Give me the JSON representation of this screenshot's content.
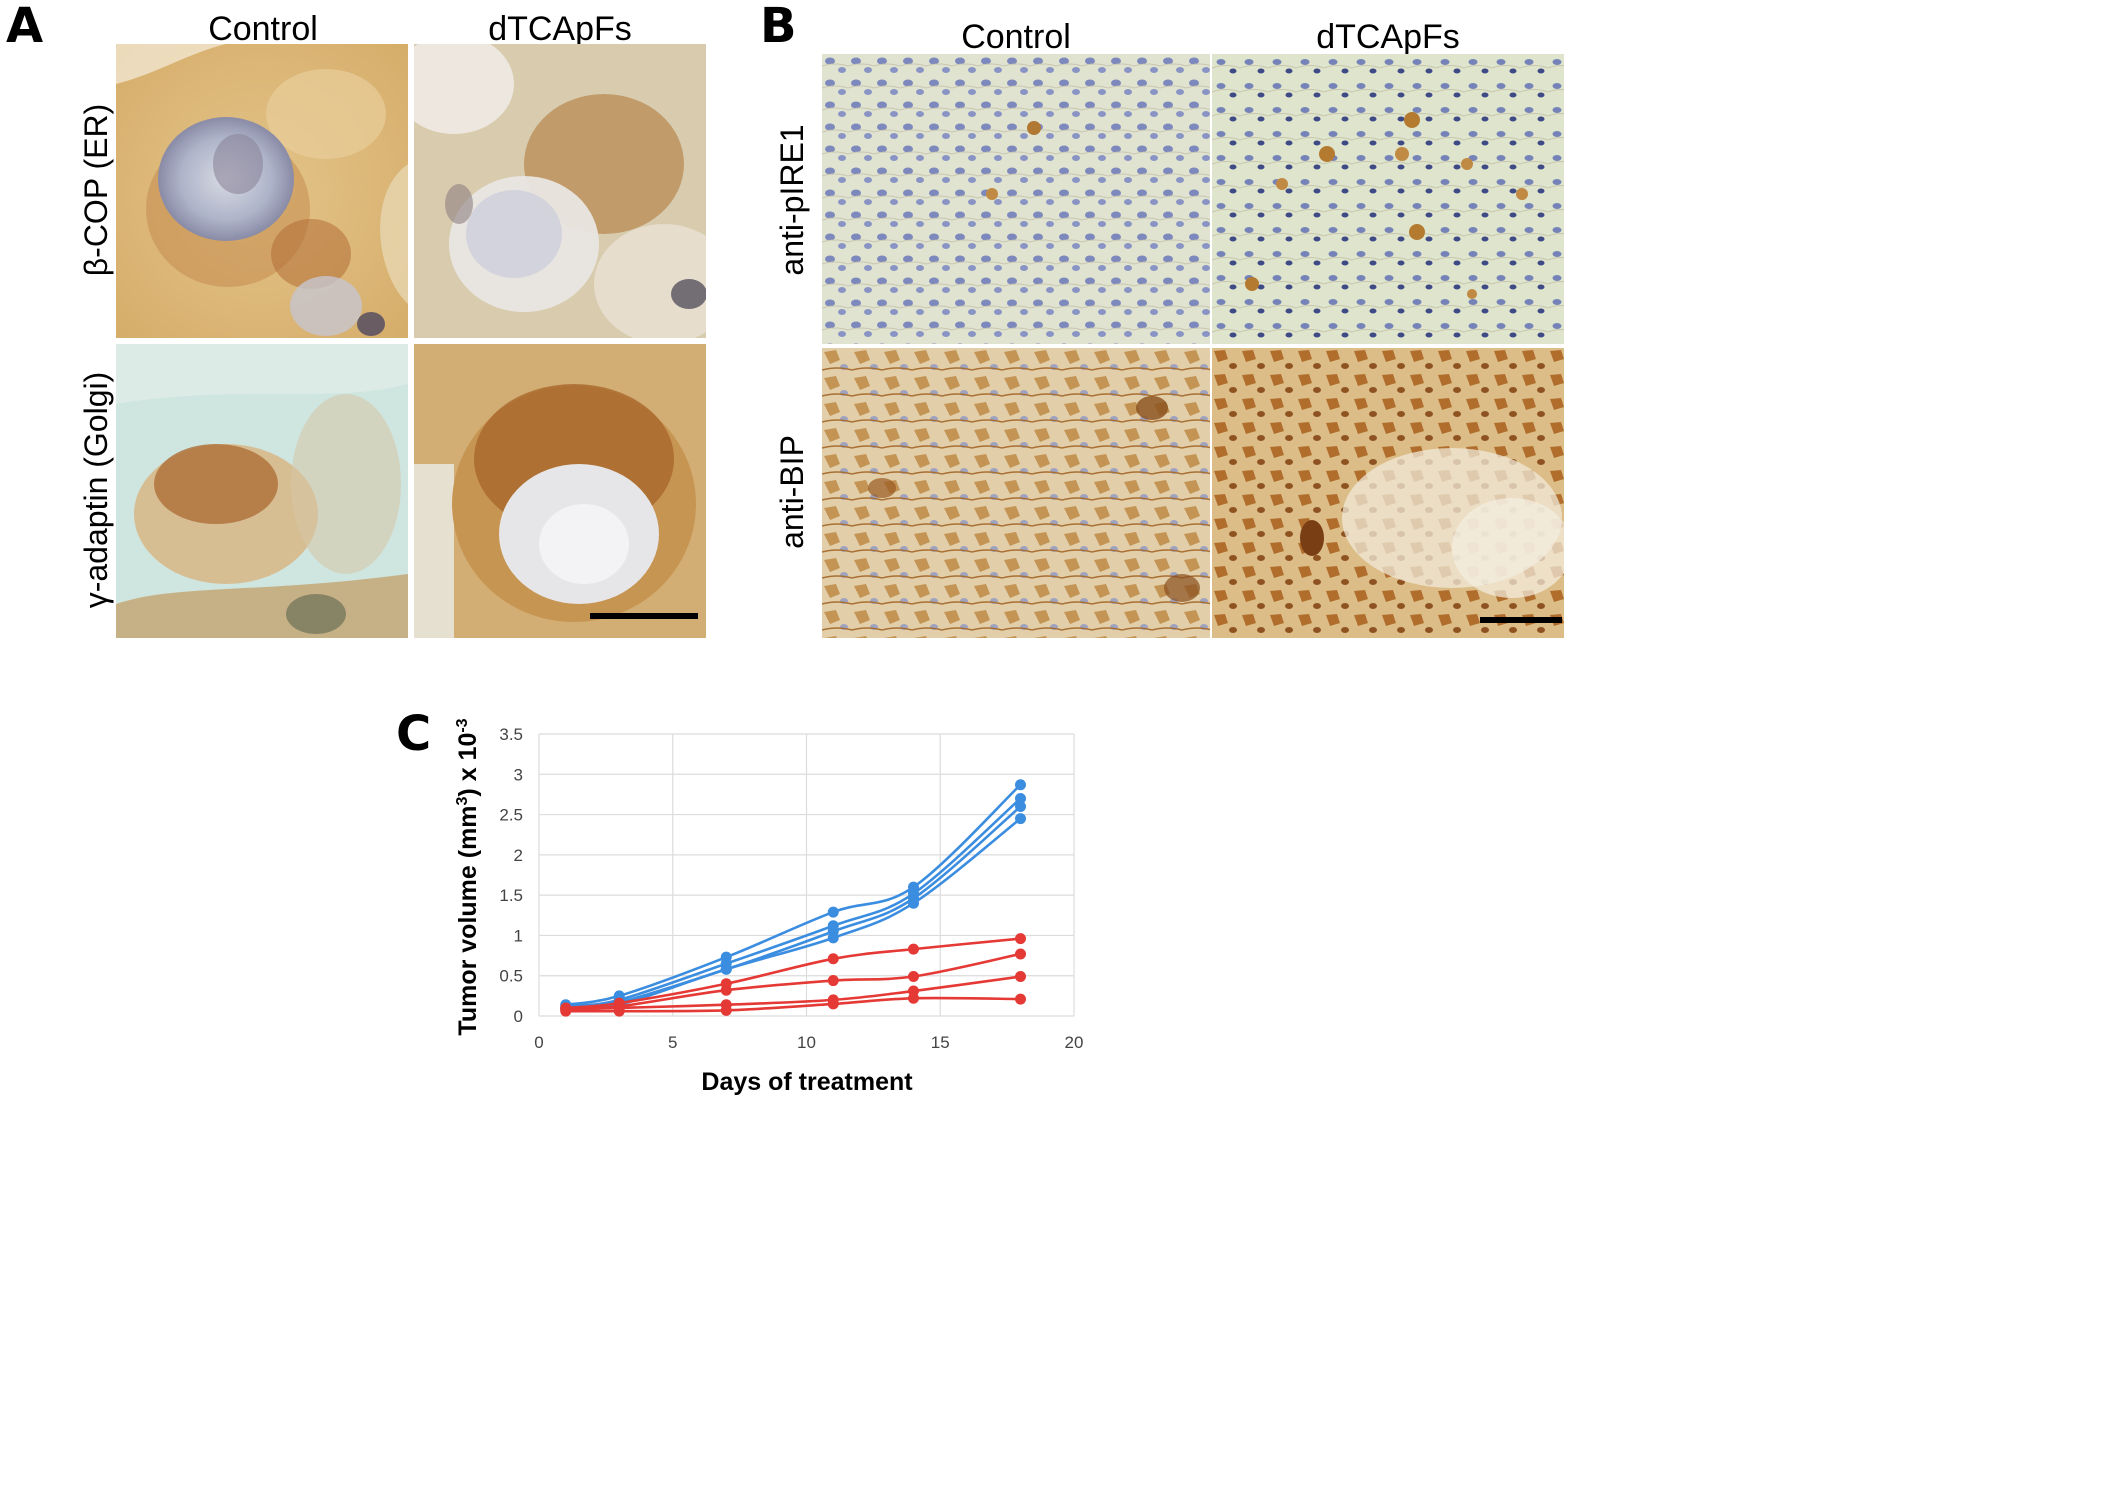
{
  "panelA": {
    "letter": "A",
    "columns": [
      "Control",
      "dTCApFs"
    ],
    "rows": [
      "β-COP (ER)",
      "γ-adaptin (Golgi)"
    ]
  },
  "panelB": {
    "letter": "B",
    "columns": [
      "Control",
      "dTCApFs"
    ],
    "rows": [
      "anti-pIRE1",
      "anti-BIP"
    ]
  },
  "panelC": {
    "letter": "C"
  },
  "colors": {
    "dTCApFs_series": "#e53935",
    "control_series": "#3b8de0",
    "grid": "#dcdcdc",
    "axis_text": "#444444"
  },
  "chart_data": {
    "type": "line",
    "xlabel": "Days of treatment",
    "ylabel_main": "Tumor volume (mm",
    "ylabel_sup1": "3",
    "ylabel_mid": ") x 10",
    "ylabel_sup2": "-3",
    "xlim": [
      0,
      20
    ],
    "ylim": [
      0,
      3.5
    ],
    "xticks": [
      0,
      5,
      10,
      15,
      20
    ],
    "yticks": [
      0,
      0.5,
      1,
      1.5,
      2,
      2.5,
      3,
      3.5
    ],
    "grid": true,
    "x": [
      1,
      3,
      7,
      11,
      14,
      18
    ],
    "series": [
      {
        "group": "blue",
        "values": [
          0.14,
          0.25,
          0.73,
          1.29,
          1.6,
          2.87
        ]
      },
      {
        "group": "blue",
        "values": [
          0.12,
          0.2,
          0.65,
          1.12,
          1.52,
          2.7
        ]
      },
      {
        "group": "blue",
        "values": [
          0.1,
          0.17,
          0.58,
          1.05,
          1.46,
          2.6
        ]
      },
      {
        "group": "blue",
        "values": [
          0.08,
          0.14,
          0.58,
          0.97,
          1.4,
          2.45
        ]
      },
      {
        "group": "red",
        "values": [
          0.1,
          0.16,
          0.4,
          0.71,
          0.83,
          0.96
        ]
      },
      {
        "group": "red",
        "values": [
          0.09,
          0.12,
          0.32,
          0.44,
          0.49,
          0.77
        ]
      },
      {
        "group": "red",
        "values": [
          0.08,
          0.1,
          0.14,
          0.2,
          0.31,
          0.49
        ]
      },
      {
        "group": "red",
        "values": [
          0.06,
          0.06,
          0.07,
          0.15,
          0.22,
          0.21
        ]
      }
    ]
  }
}
